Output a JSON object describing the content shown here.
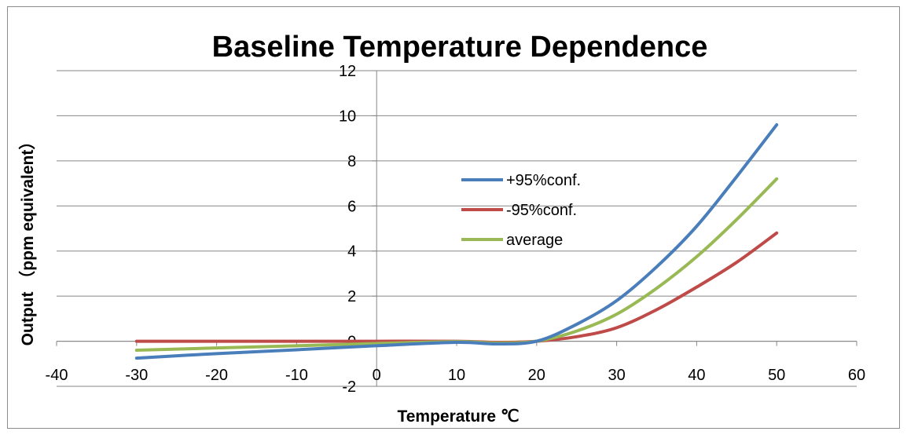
{
  "chart_data": {
    "type": "line",
    "title": "Baseline Temperature Dependence",
    "xlabel": "Temperature ℃",
    "ylabel": "Output （ppm equivalent）",
    "xlim": [
      -40,
      60
    ],
    "ylim": [
      -2,
      12
    ],
    "xticks": [
      "-40",
      "-30",
      "-20",
      "-10",
      "0",
      "10",
      "20",
      "30",
      "40",
      "50",
      "60"
    ],
    "yticks": [
      "-2",
      "0",
      "2",
      "4",
      "6",
      "8",
      "10",
      "12"
    ],
    "grid": "horizontal",
    "legend_position": "center-right",
    "x": [
      -30,
      -20,
      -10,
      0,
      10,
      15,
      20,
      25,
      30,
      35,
      40,
      45,
      50
    ],
    "series": [
      {
        "name": "+95%conf.",
        "color": "#4a7ebb",
        "values": [
          -0.75,
          -0.55,
          -0.38,
          -0.2,
          -0.05,
          -0.12,
          0.0,
          0.75,
          1.8,
          3.3,
          5.1,
          7.3,
          9.6
        ]
      },
      {
        "name": "-95%conf.",
        "color": "#be4b48",
        "values": [
          0.0,
          0.0,
          0.0,
          0.0,
          0.0,
          -0.05,
          0.0,
          0.2,
          0.6,
          1.4,
          2.4,
          3.5,
          4.8
        ]
      },
      {
        "name": "average",
        "color": "#98b954",
        "values": [
          -0.4,
          -0.3,
          -0.2,
          -0.1,
          -0.02,
          -0.08,
          0.0,
          0.45,
          1.2,
          2.35,
          3.75,
          5.4,
          7.2
        ]
      }
    ]
  }
}
